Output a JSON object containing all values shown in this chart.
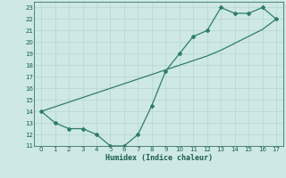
{
  "x": [
    0,
    1,
    2,
    3,
    4,
    5,
    6,
    7,
    8,
    9,
    10,
    11,
    12,
    13,
    14,
    15,
    16,
    17
  ],
  "y_main": [
    14,
    13,
    12.5,
    12.5,
    12,
    11,
    11,
    12,
    14.5,
    17.5,
    19,
    20.5,
    21,
    23,
    22.5,
    22.5,
    23,
    22
  ],
  "y_trend": [
    14,
    14.4,
    14.8,
    15.2,
    15.6,
    16.0,
    16.4,
    16.8,
    17.2,
    17.6,
    18.0,
    18.4,
    18.8,
    19.3,
    19.9,
    20.5,
    21.1,
    22.0
  ],
  "xlabel": "Humidex (Indice chaleur)",
  "ylim": [
    11,
    23.5
  ],
  "xlim": [
    -0.5,
    17.5
  ],
  "yticks": [
    11,
    12,
    13,
    14,
    15,
    16,
    17,
    18,
    19,
    20,
    21,
    22,
    23
  ],
  "xticks": [
    0,
    1,
    2,
    3,
    4,
    5,
    6,
    7,
    8,
    9,
    10,
    11,
    12,
    13,
    14,
    15,
    16,
    17
  ],
  "line_color": "#2e7d6e",
  "bg_color": "#cde8e5",
  "grid_color_major": "#b8d4d0",
  "grid_color_minor": "#d4e9e6",
  "text_color": "#1a5c52"
}
